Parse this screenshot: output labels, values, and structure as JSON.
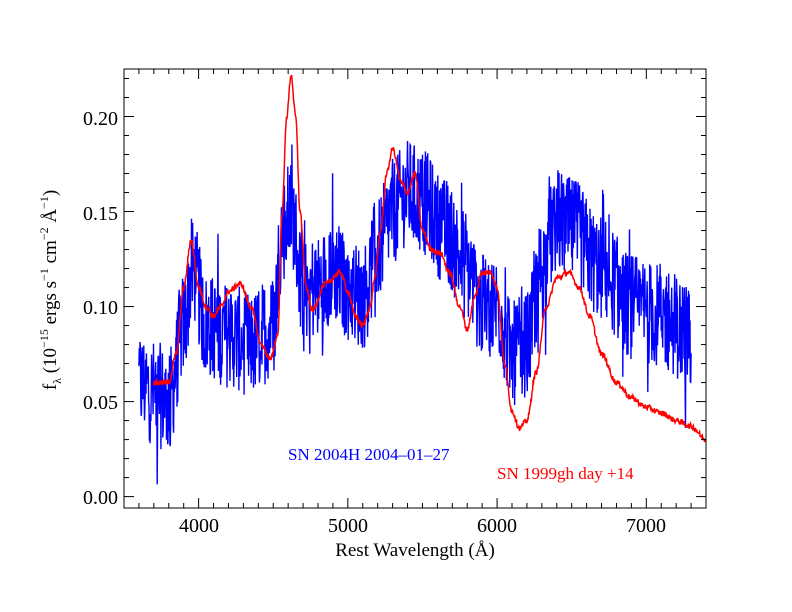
{
  "chart_data": {
    "type": "line",
    "title": "",
    "xlabel": "Rest Wavelength (Å)",
    "ylabel": {
      "f": "f",
      "sub": "λ",
      "open": " (10",
      "exp1": "−15",
      "mid1": " ergs s",
      "exp2": "−1",
      "mid2": " cm",
      "exp3": "−2",
      "mid3": " Å",
      "exp4": "−1",
      "close": ")"
    },
    "xlim": [
      3500,
      7400
    ],
    "ylim": [
      -0.006,
      0.225
    ],
    "xticks": [
      4000,
      5000,
      6000,
      7000
    ],
    "xtick_labels": [
      "4000",
      "5000",
      "6000",
      "7000"
    ],
    "yticks": [
      0.0,
      0.05,
      0.1,
      0.15,
      0.2
    ],
    "ytick_labels": [
      "0.00",
      "0.05",
      "0.10",
      "0.15",
      "0.20"
    ],
    "grid": false,
    "series": [
      {
        "name": "SN 2004H 2004-01-27",
        "color": "#0000ff",
        "noisy": true,
        "noise_amplitude": 0.028,
        "x": [
          3600,
          3700,
          3800,
          3900,
          3960,
          4050,
          4200,
          4350,
          4500,
          4560,
          4620,
          4700,
          4800,
          4900,
          5000,
          5100,
          5200,
          5300,
          5400,
          5500,
          5650,
          5800,
          5900,
          6000,
          6100,
          6200,
          6300,
          6400,
          6500,
          6700,
          6900,
          7100,
          7300
        ],
        "y": [
          0.06,
          0.055,
          0.05,
          0.09,
          0.12,
          0.09,
          0.085,
          0.08,
          0.09,
          0.14,
          0.15,
          0.11,
          0.11,
          0.12,
          0.11,
          0.105,
          0.13,
          0.15,
          0.16,
          0.155,
          0.14,
          0.12,
          0.1,
          0.1,
          0.075,
          0.08,
          0.12,
          0.145,
          0.14,
          0.12,
          0.1,
          0.095,
          0.085
        ]
      },
      {
        "name": "SN 1999gh day +14",
        "color": "#ff0000",
        "noisy": false,
        "noise_amplitude": 0.003,
        "x": [
          3700,
          3800,
          3850,
          3900,
          3950,
          4000,
          4050,
          4100,
          4150,
          4200,
          4280,
          4350,
          4420,
          4480,
          4530,
          4560,
          4590,
          4620,
          4650,
          4680,
          4720,
          4760,
          4850,
          4950,
          5000,
          5050,
          5100,
          5150,
          5180,
          5220,
          5260,
          5300,
          5360,
          5400,
          5450,
          5500,
          5560,
          5620,
          5680,
          5750,
          5800,
          5850,
          5900,
          5960,
          6000,
          6050,
          6100,
          6150,
          6200,
          6260,
          6330,
          6400,
          6480,
          6550,
          6620,
          6700,
          6800,
          6900,
          7000,
          7100,
          7200,
          7300,
          7400
        ],
        "y": [
          0.06,
          0.06,
          0.075,
          0.11,
          0.135,
          0.11,
          0.1,
          0.095,
          0.1,
          0.108,
          0.112,
          0.1,
          0.08,
          0.072,
          0.085,
          0.15,
          0.2,
          0.222,
          0.2,
          0.15,
          0.11,
          0.098,
          0.112,
          0.118,
          0.108,
          0.095,
          0.09,
          0.1,
          0.115,
          0.14,
          0.17,
          0.183,
          0.165,
          0.16,
          0.17,
          0.14,
          0.13,
          0.128,
          0.118,
          0.1,
          0.088,
          0.105,
          0.118,
          0.118,
          0.11,
          0.07,
          0.045,
          0.036,
          0.04,
          0.065,
          0.1,
          0.115,
          0.118,
          0.11,
          0.095,
          0.075,
          0.06,
          0.052,
          0.047,
          0.044,
          0.04,
          0.037,
          0.03
        ]
      }
    ],
    "annotations": [
      {
        "text": "SN 2004H 2004–01–27",
        "color": "#0000ff"
      },
      {
        "text": "SN 1999gh day +14",
        "color": "#ff0000"
      }
    ]
  }
}
